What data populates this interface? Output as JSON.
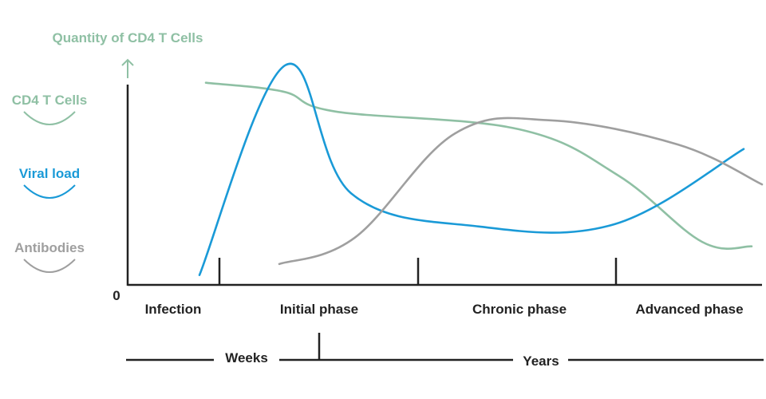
{
  "chart_data": {
    "type": "line",
    "title": "",
    "ylabel": "Quantity of CD4 T Cells",
    "origin_label": "0",
    "x_phases": [
      "Infection",
      "Initial phase",
      "Chronic phase",
      "Advanced phase"
    ],
    "time_scale": [
      "Weeks",
      "Years"
    ],
    "y_scale": "relative (0 = none, 100 = peak)",
    "ylim": [
      0,
      100
    ],
    "grid": false,
    "legend_position": "left",
    "series": [
      {
        "name": "CD4 T Cells",
        "color": "#8fc0a4",
        "points": [
          {
            "x": "start of infection",
            "y": 90
          },
          {
            "x": "mid initial phase",
            "y": 86
          },
          {
            "x": "end of initial phase",
            "y": 77
          },
          {
            "x": "mid chronic phase",
            "y": 69
          },
          {
            "x": "end of chronic phase",
            "y": 48
          },
          {
            "x": "mid advanced phase",
            "y": 18
          },
          {
            "x": "end",
            "y": 16
          }
        ]
      },
      {
        "name": "Viral load",
        "color": "#1a9ad7",
        "points": [
          {
            "x": "infection",
            "y": 3
          },
          {
            "x": "early initial phase",
            "y": 98
          },
          {
            "x": "late initial phase",
            "y": 40
          },
          {
            "x": "chronic phase",
            "y": 25
          },
          {
            "x": "end of chronic phase",
            "y": 26
          },
          {
            "x": "end",
            "y": 60
          }
        ]
      },
      {
        "name": "Antibodies",
        "color": "#9f9f9f",
        "points": [
          {
            "x": "mid initial phase",
            "y": 8
          },
          {
            "x": "end of initial phase",
            "y": 20
          },
          {
            "x": "early chronic phase",
            "y": 67
          },
          {
            "x": "late chronic phase",
            "y": 73
          },
          {
            "x": "mid advanced phase",
            "y": 62
          },
          {
            "x": "end",
            "y": 44
          }
        ]
      }
    ],
    "axis_color": "#222222"
  }
}
